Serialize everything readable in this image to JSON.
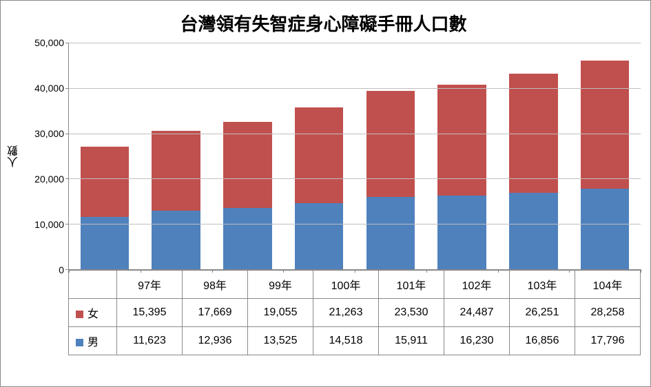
{
  "chart": {
    "type": "stacked-bar",
    "title": "台灣領有失智症身心障礙手冊人口數",
    "title_fontsize": 26,
    "ylabel": "人數",
    "label_fontsize": 16,
    "tick_fontsize": 14,
    "categories": [
      "97年",
      "98年",
      "99年",
      "100年",
      "101年",
      "102年",
      "103年",
      "104年"
    ],
    "series": [
      {
        "name": "男",
        "color": "#4f81bd",
        "values": [
          11623,
          12936,
          13525,
          14518,
          15911,
          16230,
          16856,
          17796
        ]
      },
      {
        "name": "女",
        "color": "#c0504d",
        "values": [
          15395,
          17669,
          19055,
          21263,
          23530,
          24487,
          26251,
          28258
        ]
      }
    ],
    "ylim": [
      0,
      50000
    ],
    "ytick_step": 10000,
    "yticks": [
      "0",
      "10,000",
      "20,000",
      "30,000",
      "40,000",
      "50,000"
    ],
    "background_color": "#ffffff",
    "grid_color": "#bfbfbf",
    "axis_color": "#888888",
    "bar_width_ratio": 0.68,
    "legend_position": "data-table"
  },
  "table_values": {
    "female": [
      "15,395",
      "17,669",
      "19,055",
      "21,263",
      "23,530",
      "24,487",
      "26,251",
      "28,258"
    ],
    "male": [
      "11,623",
      "12,936",
      "13,525",
      "14,518",
      "15,911",
      "16,230",
      "16,856",
      "17,796"
    ]
  }
}
